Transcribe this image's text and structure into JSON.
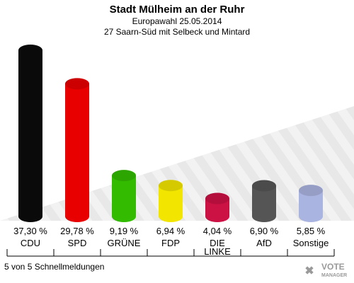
{
  "chart_data": {
    "type": "bar",
    "title": "Stadt Mülheim an der Ruhr",
    "subtitle": "Europawahl 25.05.2014",
    "subtitle2": "27 Saarn-Süd mit Selbeck und Mintard",
    "categories": [
      "CDU",
      "SPD",
      "GRÜNE",
      "FDP",
      "DIE LINKE",
      "AfD",
      "Sonstige"
    ],
    "values": [
      37.3,
      29.78,
      9.19,
      6.94,
      4.04,
      6.9,
      5.85
    ],
    "value_labels": [
      "37,30 %",
      "29,78 %",
      "9,19 %",
      "6,94 %",
      "4,04 %",
      "6,90 %",
      "5,85 %"
    ],
    "colors": [
      "#0a0a0a",
      "#e80000",
      "#33bb00",
      "#f2e600",
      "#cc1144",
      "#555555",
      "#aab4e0"
    ],
    "ylim": [
      0,
      40
    ],
    "grid": false
  },
  "footer": "5 von 5 Schnellmeldungen",
  "logo": {
    "line1": "VOTE",
    "line2": "MANAGER"
  }
}
